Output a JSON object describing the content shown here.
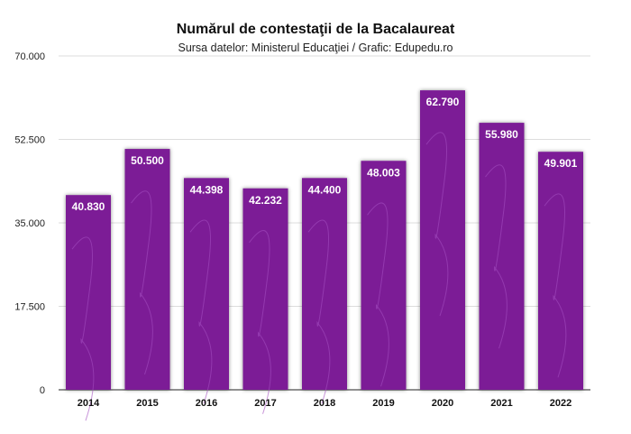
{
  "chart_data": {
    "type": "bar",
    "title": "Numărul de contestaţii de la Bacalaureat",
    "subtitle": "Sursa datelor: Ministerul Educaţiei / Grafic: Edupedu.ro",
    "xlabel": "",
    "ylabel": "",
    "categories": [
      "2014",
      "2015",
      "2016",
      "2017",
      "2018",
      "2019",
      "2020",
      "2021",
      "2022"
    ],
    "values": [
      40830,
      50500,
      44398,
      42232,
      44400,
      48003,
      62790,
      55980,
      49901
    ],
    "value_labels": [
      "40.830",
      "50.500",
      "44.398",
      "42.232",
      "44.400",
      "48.003",
      "62.790",
      "55.980",
      "49.901"
    ],
    "ylim": [
      0,
      70000
    ],
    "yticks": [
      0,
      17500,
      35000,
      52500,
      70000
    ],
    "ytick_labels": [
      "0",
      "17.500",
      "35.000",
      "52.500",
      "70.000"
    ],
    "grid": true,
    "bar_color": "#7b1c96"
  }
}
